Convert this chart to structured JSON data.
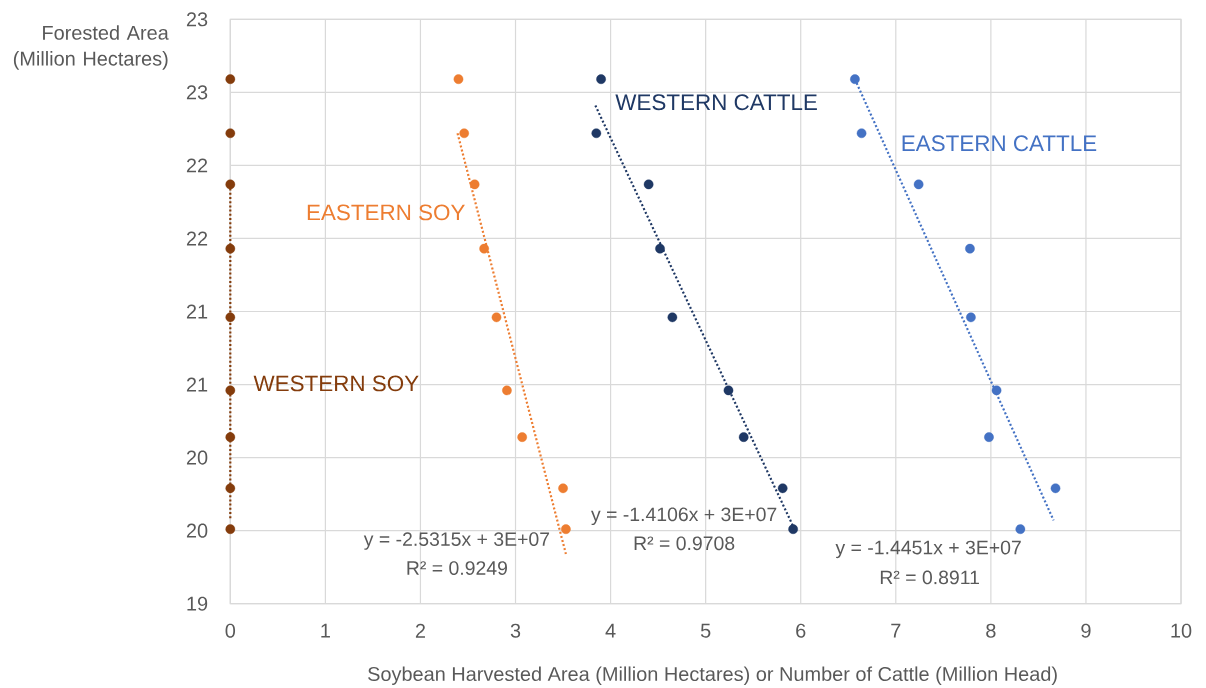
{
  "chart_data": {
    "type": "scatter",
    "xlabel": "Soybean Harvested Area (Million Hectares) or Number of Cattle (Million Head)",
    "ylabel": "Forested Area (Million Hectares)",
    "xlim": [
      0,
      10
    ],
    "ylim": [
      19,
      23
    ],
    "xticks": [
      0,
      1,
      2,
      3,
      4,
      5,
      6,
      7,
      8,
      9,
      10
    ],
    "yticks": [
      19,
      {
        "value": 19.5,
        "label": "20"
      },
      20,
      {
        "value": 20.5,
        "label": "21"
      },
      21,
      {
        "value": 21.5,
        "label": "22"
      },
      22,
      {
        "value": 22.5,
        "label": "23"
      },
      23
    ],
    "grid": true,
    "marker": "circle",
    "series": [
      {
        "name": "WESTERN SOY",
        "color": "#843c0c",
        "x": [
          0,
          0,
          0,
          0,
          0,
          0,
          0,
          0,
          0
        ],
        "values": [
          22.59,
          22.22,
          21.87,
          21.43,
          20.96,
          20.46,
          20.14,
          19.79,
          19.51
        ]
      },
      {
        "name": "EASTERN SOY",
        "color": "#ed7d31",
        "x": [
          2.4,
          2.46,
          2.57,
          2.67,
          2.8,
          2.91,
          3.07,
          3.5,
          3.53
        ],
        "values": [
          22.59,
          22.22,
          21.87,
          21.43,
          20.96,
          20.46,
          20.14,
          19.79,
          19.51
        ]
      },
      {
        "name": "WESTERN CATTLE",
        "color": "#1f3864",
        "x": [
          3.9,
          3.85,
          4.4,
          4.52,
          4.65,
          5.24,
          5.4,
          5.81,
          5.92
        ],
        "values": [
          22.59,
          22.22,
          21.87,
          21.43,
          20.96,
          20.46,
          20.14,
          19.79,
          19.51
        ]
      },
      {
        "name": "EASTERN CATTLE",
        "color": "#4472c4",
        "x": [
          6.57,
          6.64,
          7.24,
          7.78,
          7.79,
          8.06,
          7.98,
          8.68,
          8.31
        ],
        "values": [
          22.59,
          22.22,
          21.87,
          21.43,
          20.96,
          20.46,
          20.14,
          19.79,
          19.51
        ]
      },
      {
        "type": "line",
        "line_style": "dotted",
        "marker": "none",
        "color": "#843c0c",
        "x": [
          0,
          0
        ],
        "values": [
          21.87,
          19.58
        ]
      },
      {
        "type": "line",
        "line_style": "dotted",
        "marker": "none",
        "color": "#ed7d31",
        "x": [
          2.39,
          3.53
        ],
        "values": [
          22.22,
          19.34
        ]
      },
      {
        "type": "line",
        "line_style": "dotted",
        "marker": "none",
        "color": "#1f3864",
        "x": [
          3.84,
          5.92
        ],
        "values": [
          22.41,
          19.53
        ]
      },
      {
        "type": "line",
        "line_style": "dotted",
        "marker": "none",
        "color": "#4472c4",
        "x": [
          6.57,
          8.66
        ],
        "values": [
          22.59,
          19.57
        ]
      }
    ],
    "annotations": [
      "y = -2.5315x + 3E+07",
      "R² = 0.9249",
      "y = -1.4106x + 3E+07",
      "R² = 0.9708",
      "y = -1.4451x + 3E+07",
      "R² = 0.8911"
    ]
  }
}
